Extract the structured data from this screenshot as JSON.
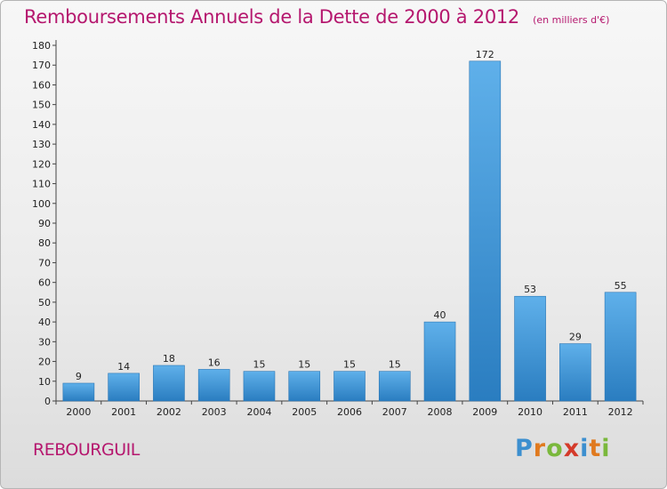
{
  "chart_data": {
    "type": "bar",
    "title": "Remboursements Annuels de la Dette de 2000 à 2012",
    "subtitle": "(en milliers d'€)",
    "categories": [
      "2000",
      "2001",
      "2002",
      "2003",
      "2004",
      "2005",
      "2006",
      "2007",
      "2008",
      "2009",
      "2010",
      "2011",
      "2012"
    ],
    "values": [
      9,
      14,
      18,
      16,
      15,
      15,
      15,
      15,
      40,
      172,
      53,
      29,
      55
    ],
    "ylim": [
      0,
      180
    ],
    "yticks": [
      0,
      10,
      20,
      30,
      40,
      50,
      60,
      70,
      80,
      90,
      100,
      110,
      120,
      130,
      140,
      150,
      160,
      170,
      180
    ],
    "grid": false,
    "bar_color": "#3a8fd0"
  },
  "footer": {
    "city": "REBOURGUIL",
    "logo_letters": [
      {
        "ch": "P",
        "color": "#3c8fcf"
      },
      {
        "ch": "r",
        "color": "#e07a1f"
      },
      {
        "ch": "o",
        "color": "#7ab83c"
      },
      {
        "ch": "x",
        "color": "#d43a2a"
      },
      {
        "ch": "i",
        "color": "#3c8fcf"
      },
      {
        "ch": "t",
        "color": "#e07a1f"
      },
      {
        "ch": "i",
        "color": "#7ab83c"
      }
    ]
  }
}
